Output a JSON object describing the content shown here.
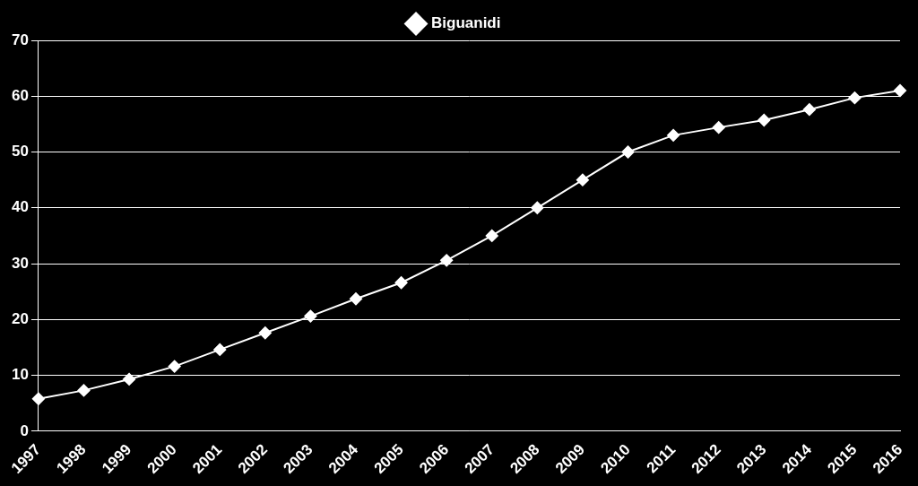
{
  "chart_data": {
    "type": "line",
    "categories": [
      "1997",
      "1998",
      "1999",
      "2000",
      "2001",
      "2002",
      "2003",
      "2004",
      "2005",
      "2006",
      "2007",
      "2008",
      "2009",
      "2010",
      "2011",
      "2012",
      "2013",
      "2014",
      "2015",
      "2016"
    ],
    "series": [
      {
        "name": "Biguanidi",
        "color": "#ffffff",
        "marker": "diamond",
        "line_style": "solid",
        "values": [
          5.8,
          7.3,
          9.3,
          11.6,
          14.6,
          17.6,
          20.6,
          23.7,
          26.6,
          30.6,
          35.0,
          40.0,
          45.0,
          50.0,
          53.0,
          54.4,
          55.7,
          57.6,
          59.7,
          61.0
        ]
      }
    ],
    "ylim": [
      0,
      70
    ],
    "yticks": [
      0,
      10,
      20,
      30,
      40,
      50,
      60,
      70
    ],
    "grid": true,
    "legend": "top"
  }
}
